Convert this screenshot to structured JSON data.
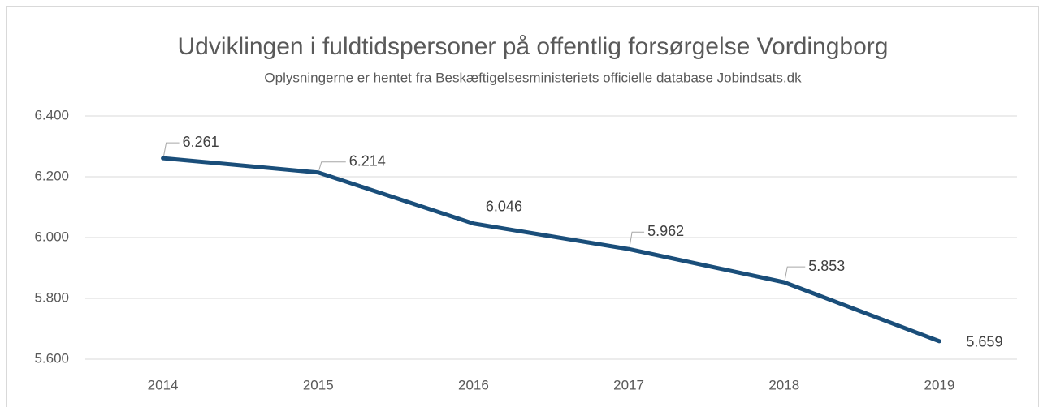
{
  "chart_data": {
    "type": "line",
    "title": "Udviklingen i fuldtidspersoner på offentlig forsørgelse Vordingborg",
    "subtitle": "Oplysningerne er hentet fra Beskæftigelsesministeriets officielle database Jobindsats.dk",
    "categories": [
      "2014",
      "2015",
      "2016",
      "2017",
      "2018",
      "2019"
    ],
    "series": [
      {
        "name": "Vordingborg",
        "color": "#1a4e7a",
        "values": [
          6261,
          6214,
          6046,
          5962,
          5853,
          5659
        ],
        "value_labels": [
          "6.261",
          "6.214",
          "6.046",
          "5.962",
          "5.853",
          "5.659"
        ]
      }
    ],
    "ylim": [
      5600,
      6400
    ],
    "yticks": [
      {
        "value": 5600,
        "label": "5.600"
      },
      {
        "value": 5800,
        "label": "5.800"
      },
      {
        "value": 6000,
        "label": "6.000"
      },
      {
        "value": 6200,
        "label": "6.200"
      },
      {
        "value": 6400,
        "label": "6.400"
      }
    ],
    "grid": true
  }
}
